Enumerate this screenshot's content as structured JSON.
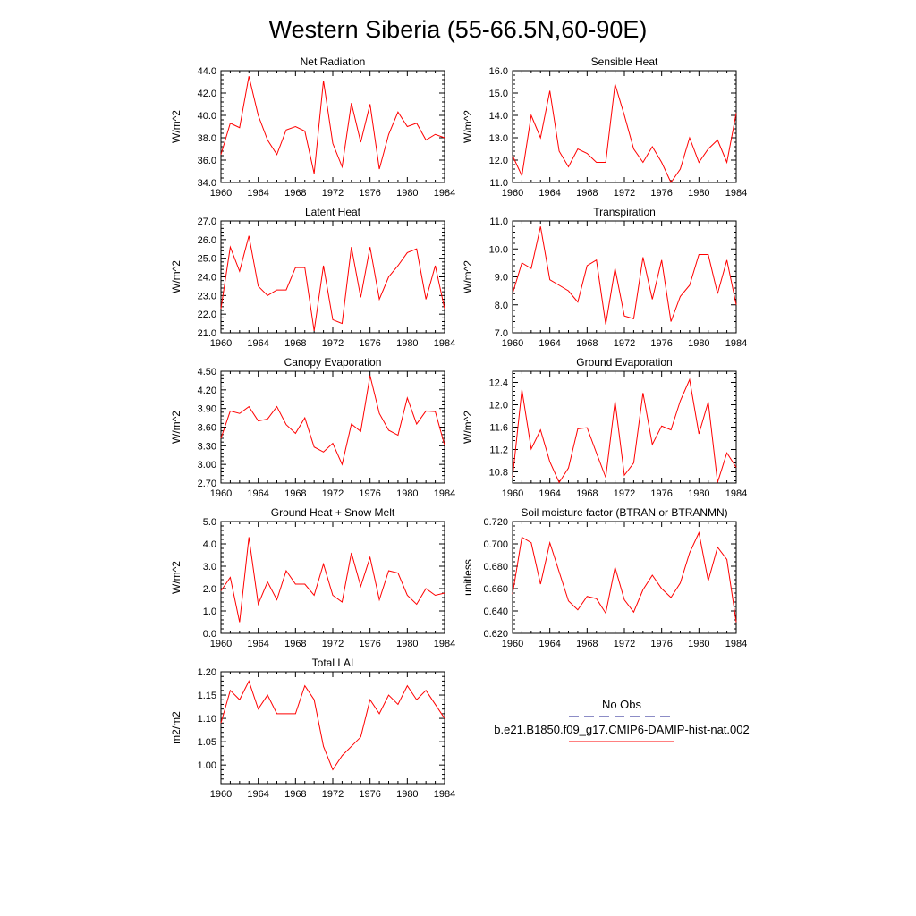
{
  "title": "Western Siberia (55-66.5N,60-90E)",
  "legend": {
    "obs_label": "No Obs",
    "model_label": "b.e21.B1850.f09_g17.CMIP6-DAMIP-hist-nat.002",
    "obs_color": "#1a1a8c",
    "model_color": "#ff0000"
  },
  "x_ticks": [
    "1960",
    "1964",
    "1968",
    "1972",
    "1976",
    "1980",
    "1984"
  ],
  "chart_data": [
    {
      "type": "line",
      "title": "Net Radiation",
      "ylabel": "W/m^2",
      "ylim": [
        34.0,
        44.0
      ],
      "y_ticks": [
        "34.0",
        "36.0",
        "38.0",
        "40.0",
        "42.0",
        "44.0"
      ],
      "x": [
        1960,
        1961,
        1962,
        1963,
        1964,
        1965,
        1966,
        1967,
        1968,
        1969,
        1970,
        1971,
        1972,
        1973,
        1974,
        1975,
        1976,
        1977,
        1978,
        1979,
        1980,
        1981,
        1982,
        1983,
        1984
      ],
      "values": [
        36.5,
        39.3,
        38.9,
        43.5,
        40.0,
        37.8,
        36.5,
        38.7,
        39.0,
        38.6,
        34.8,
        43.1,
        37.5,
        35.4,
        41.1,
        37.6,
        41.0,
        35.2,
        38.3,
        40.3,
        39.0,
        39.3,
        37.8,
        38.3,
        38.0
      ]
    },
    {
      "type": "line",
      "title": "Sensible Heat",
      "ylabel": "W/m^2",
      "ylim": [
        11.0,
        16.0
      ],
      "y_ticks": [
        "11.0",
        "12.0",
        "13.0",
        "14.0",
        "15.0",
        "16.0"
      ],
      "x": [
        1960,
        1961,
        1962,
        1963,
        1964,
        1965,
        1966,
        1967,
        1968,
        1969,
        1970,
        1971,
        1972,
        1973,
        1974,
        1975,
        1976,
        1977,
        1978,
        1979,
        1980,
        1981,
        1982,
        1983,
        1984
      ],
      "values": [
        12.2,
        11.3,
        14.0,
        13.0,
        15.1,
        12.4,
        11.7,
        12.5,
        12.3,
        11.9,
        11.9,
        15.4,
        14.0,
        12.5,
        11.9,
        12.6,
        11.9,
        11.0,
        11.6,
        13.0,
        11.9,
        12.5,
        12.9,
        11.9,
        14.1
      ]
    },
    {
      "type": "line",
      "title": "Latent Heat",
      "ylabel": "W/m^2",
      "ylim": [
        21.0,
        27.0
      ],
      "y_ticks": [
        "21.0",
        "22.0",
        "23.0",
        "24.0",
        "25.0",
        "26.0",
        "27.0"
      ],
      "x": [
        1960,
        1961,
        1962,
        1963,
        1964,
        1965,
        1966,
        1967,
        1968,
        1969,
        1970,
        1971,
        1972,
        1973,
        1974,
        1975,
        1976,
        1977,
        1978,
        1979,
        1980,
        1981,
        1982,
        1983,
        1984
      ],
      "values": [
        22.3,
        25.6,
        24.3,
        26.2,
        23.5,
        23.0,
        23.3,
        23.3,
        24.5,
        24.5,
        21.1,
        24.6,
        21.7,
        21.5,
        25.6,
        22.9,
        25.6,
        22.8,
        24.0,
        24.6,
        25.3,
        25.5,
        22.8,
        24.6,
        22.3
      ]
    },
    {
      "type": "line",
      "title": "Transpiration",
      "ylabel": "W/m^2",
      "ylim": [
        7.0,
        11.0
      ],
      "y_ticks": [
        "7.0",
        "8.0",
        "9.0",
        "10.0",
        "11.0"
      ],
      "x": [
        1960,
        1961,
        1962,
        1963,
        1964,
        1965,
        1966,
        1967,
        1968,
        1969,
        1970,
        1971,
        1972,
        1973,
        1974,
        1975,
        1976,
        1977,
        1978,
        1979,
        1980,
        1981,
        1982,
        1983,
        1984
      ],
      "values": [
        8.4,
        9.5,
        9.3,
        10.8,
        8.9,
        8.7,
        8.5,
        8.1,
        9.4,
        9.6,
        7.3,
        9.3,
        7.6,
        7.5,
        9.7,
        8.2,
        9.6,
        7.4,
        8.3,
        8.7,
        9.8,
        9.8,
        8.4,
        9.6,
        8.0
      ]
    },
    {
      "type": "line",
      "title": "Canopy Evaporation",
      "ylabel": "W/m^2",
      "ylim": [
        2.7,
        4.5
      ],
      "y_ticks": [
        "2.70",
        "3.00",
        "3.30",
        "3.60",
        "3.90",
        "4.20",
        "4.50"
      ],
      "x": [
        1960,
        1961,
        1962,
        1963,
        1964,
        1965,
        1966,
        1967,
        1968,
        1969,
        1970,
        1971,
        1972,
        1973,
        1974,
        1975,
        1976,
        1977,
        1978,
        1979,
        1980,
        1981,
        1982,
        1983,
        1984
      ],
      "values": [
        3.42,
        3.86,
        3.82,
        3.93,
        3.7,
        3.73,
        3.93,
        3.64,
        3.5,
        3.75,
        3.28,
        3.2,
        3.34,
        3.0,
        3.65,
        3.53,
        4.43,
        3.82,
        3.55,
        3.47,
        4.07,
        3.65,
        3.86,
        3.85,
        3.31
      ]
    },
    {
      "type": "line",
      "title": "Ground Evaporation",
      "ylabel": "W/m^2",
      "ylim": [
        10.6,
        12.6
      ],
      "y_ticks": [
        "10.8",
        "11.2",
        "11.6",
        "12.0",
        "12.4"
      ],
      "x": [
        1960,
        1961,
        1962,
        1963,
        1964,
        1965,
        1966,
        1967,
        1968,
        1969,
        1970,
        1971,
        1972,
        1973,
        1974,
        1975,
        1976,
        1977,
        1978,
        1979,
        1980,
        1981,
        1982,
        1983,
        1984
      ],
      "values": [
        10.7,
        12.27,
        11.21,
        11.55,
        10.98,
        10.61,
        10.87,
        11.57,
        11.59,
        11.14,
        10.7,
        12.06,
        10.74,
        10.96,
        12.21,
        11.29,
        11.62,
        11.55,
        12.07,
        12.45,
        11.48,
        12.05,
        10.61,
        11.14,
        10.88
      ]
    },
    {
      "type": "line",
      "title": "Ground Heat + Snow Melt",
      "ylabel": "W/m^2",
      "ylim": [
        0.0,
        5.0
      ],
      "y_ticks": [
        "0.0",
        "1.0",
        "2.0",
        "3.0",
        "4.0",
        "5.0"
      ],
      "x": [
        1960,
        1961,
        1962,
        1963,
        1964,
        1965,
        1966,
        1967,
        1968,
        1969,
        1970,
        1971,
        1972,
        1973,
        1974,
        1975,
        1976,
        1977,
        1978,
        1979,
        1980,
        1981,
        1982,
        1983,
        1984
      ],
      "values": [
        1.9,
        2.5,
        0.5,
        4.3,
        1.3,
        2.3,
        1.5,
        2.8,
        2.2,
        2.2,
        1.7,
        3.1,
        1.7,
        1.4,
        3.6,
        2.1,
        3.4,
        1.5,
        2.8,
        2.7,
        1.7,
        1.3,
        2.0,
        1.7,
        1.8
      ]
    },
    {
      "type": "line",
      "title": "Soil moisture factor (BTRAN or BTRANMN)",
      "ylabel": "unitless",
      "ylim": [
        0.62,
        0.72
      ],
      "y_ticks": [
        "0.620",
        "0.640",
        "0.660",
        "0.680",
        "0.700",
        "0.720"
      ],
      "x": [
        1960,
        1961,
        1962,
        1963,
        1964,
        1965,
        1966,
        1967,
        1968,
        1969,
        1970,
        1971,
        1972,
        1973,
        1974,
        1975,
        1976,
        1977,
        1978,
        1979,
        1980,
        1981,
        1982,
        1983,
        1984
      ],
      "values": [
        0.655,
        0.706,
        0.701,
        0.664,
        0.701,
        0.675,
        0.649,
        0.641,
        0.653,
        0.651,
        0.638,
        0.679,
        0.65,
        0.639,
        0.659,
        0.672,
        0.66,
        0.652,
        0.665,
        0.692,
        0.71,
        0.667,
        0.697,
        0.686,
        0.63
      ]
    },
    {
      "type": "line",
      "title": "Total LAI",
      "ylabel": "m2/m2",
      "ylim": [
        0.96,
        1.2
      ],
      "y_ticks": [
        "1.00",
        "1.05",
        "1.10",
        "1.15",
        "1.20"
      ],
      "x": [
        1960,
        1961,
        1962,
        1963,
        1964,
        1965,
        1966,
        1967,
        1968,
        1969,
        1970,
        1971,
        1972,
        1973,
        1974,
        1975,
        1976,
        1977,
        1978,
        1979,
        1980,
        1981,
        1982,
        1983,
        1984
      ],
      "values": [
        1.09,
        1.16,
        1.14,
        1.18,
        1.12,
        1.15,
        1.11,
        1.11,
        1.11,
        1.17,
        1.14,
        1.04,
        0.99,
        1.02,
        1.04,
        1.06,
        1.14,
        1.11,
        1.15,
        1.13,
        1.17,
        1.14,
        1.16,
        1.13,
        1.1
      ]
    }
  ]
}
